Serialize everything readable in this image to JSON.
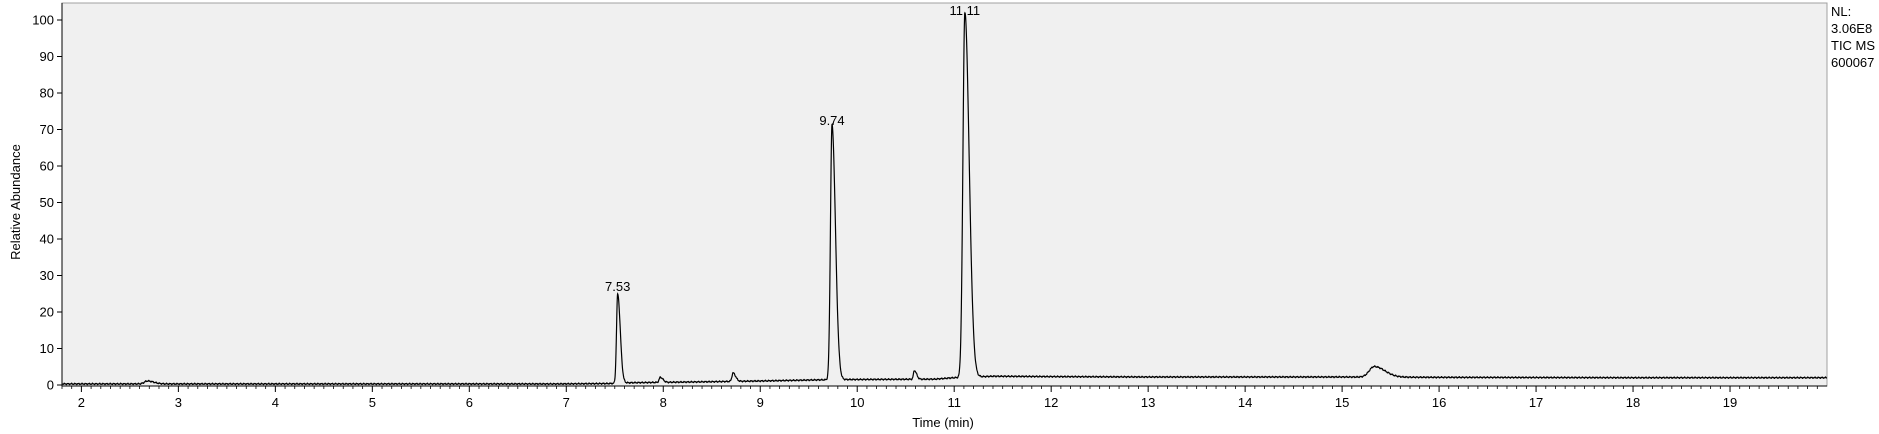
{
  "chart_data": {
    "type": "line",
    "title": "",
    "xlabel": "Time (min)",
    "ylabel": "Relative Abundance",
    "xlim": [
      1.8,
      20.0
    ],
    "ylim": [
      0,
      100
    ],
    "x_ticks": [
      2,
      3,
      4,
      5,
      6,
      7,
      8,
      9,
      10,
      11,
      12,
      13,
      14,
      15,
      16,
      17,
      18,
      19
    ],
    "y_ticks": [
      0,
      10,
      20,
      30,
      40,
      50,
      60,
      70,
      80,
      90,
      100
    ],
    "grid": false,
    "background": "#f0f0f0",
    "line_color": "#000000",
    "baseline": [
      [
        1.8,
        0.3
      ],
      [
        2.7,
        0.3
      ],
      [
        6.9,
        0.3
      ],
      [
        7.45,
        0.4
      ],
      [
        7.6,
        0.6
      ],
      [
        8.5,
        0.9
      ],
      [
        9.0,
        1.1
      ],
      [
        9.6,
        1.4
      ],
      [
        9.9,
        1.5
      ],
      [
        10.8,
        1.6
      ],
      [
        11.0,
        2.0
      ],
      [
        11.4,
        2.4
      ],
      [
        12.0,
        2.3
      ],
      [
        13.0,
        2.2
      ],
      [
        15.0,
        2.2
      ],
      [
        16.0,
        2.1
      ],
      [
        18.0,
        2.0
      ],
      [
        20.0,
        2.0
      ]
    ],
    "peaks": [
      {
        "rt": 2.68,
        "height": 0.8,
        "width": 0.03
      },
      {
        "rt": 7.53,
        "height": 24.4,
        "width": 0.012
      },
      {
        "rt": 7.97,
        "height": 1.4,
        "width": 0.012
      },
      {
        "rt": 8.72,
        "height": 2.3,
        "width": 0.012
      },
      {
        "rt": 9.74,
        "height": 69.8,
        "width": 0.016
      },
      {
        "rt": 10.59,
        "height": 2.4,
        "width": 0.01
      },
      {
        "rt": 11.11,
        "height": 100,
        "width": 0.02
      },
      {
        "rt": 15.33,
        "height": 2.9,
        "width": 0.05
      }
    ],
    "peak_labels": [
      {
        "rt": 7.53,
        "label": "7.53",
        "y": 24.4
      },
      {
        "rt": 9.74,
        "label": "9.74",
        "y": 69.8
      },
      {
        "rt": 11.11,
        "label": "11.11",
        "y": 100
      }
    ],
    "info": [
      "NL:",
      "3.06E8",
      "TIC  MS",
      "600067"
    ]
  }
}
